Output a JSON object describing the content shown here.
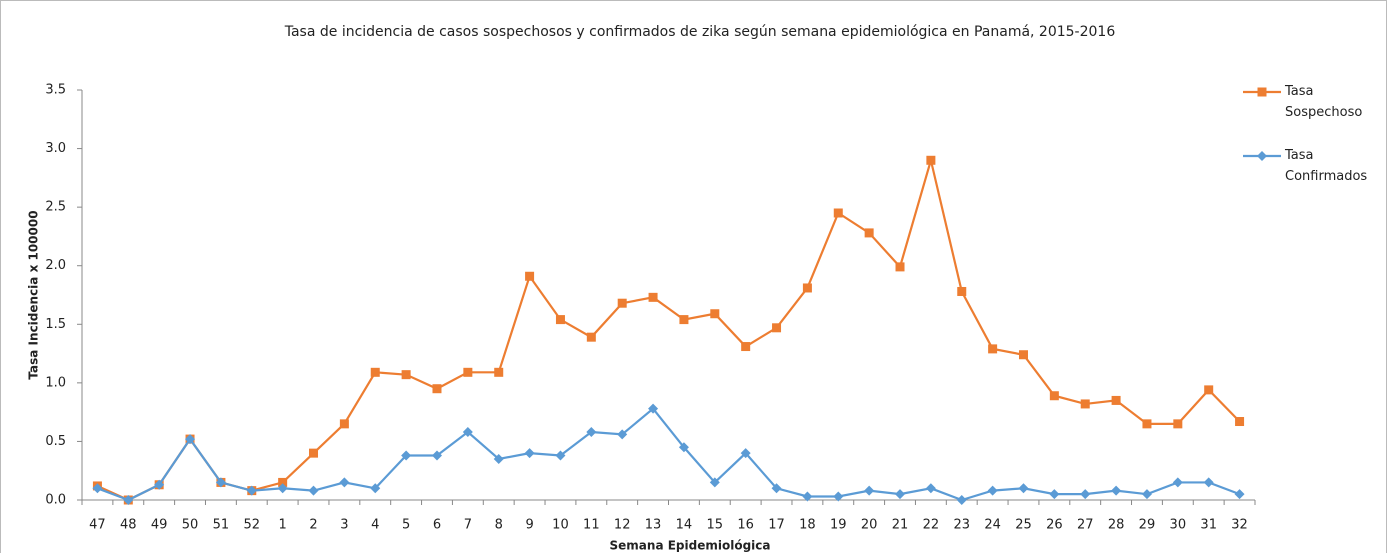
{
  "chart_data": {
    "type": "line",
    "title": "Tasa de incidencia de casos sospechosos y confirmados de zika según semana epidemiológica  en Panamá, 2015-2016",
    "x_label": "Semana Epidemiológica",
    "y_label": "Tasa Incidencia x 100000",
    "categories": [
      "47",
      "48",
      "49",
      "50",
      "51",
      "52",
      "1",
      "2",
      "3",
      "4",
      "5",
      "6",
      "7",
      "8",
      "9",
      "10",
      "11",
      "12",
      "13",
      "14",
      "15",
      "16",
      "17",
      "18",
      "19",
      "20",
      "21",
      "22",
      "23",
      "24",
      "25",
      "26",
      "27",
      "28",
      "29",
      "30",
      "31",
      "32"
    ],
    "series": [
      {
        "name": "Tasa Sospechoso",
        "color": "#ed7d31",
        "marker": "square",
        "values": [
          0.12,
          0.0,
          0.13,
          0.52,
          0.15,
          0.08,
          0.15,
          0.4,
          0.65,
          1.09,
          1.07,
          0.95,
          1.09,
          1.09,
          1.91,
          1.54,
          1.39,
          1.68,
          1.73,
          1.54,
          1.59,
          1.31,
          1.47,
          1.81,
          2.45,
          2.28,
          1.99,
          2.9,
          1.78,
          1.29,
          1.24,
          0.89,
          0.82,
          0.85,
          0.65,
          0.65,
          0.94,
          0.67
        ]
      },
      {
        "name": "Tasa Confirmados",
        "color": "#5b9bd5",
        "marker": "diamond",
        "values": [
          0.1,
          0.0,
          0.13,
          0.52,
          0.15,
          0.08,
          0.1,
          0.08,
          0.15,
          0.1,
          0.38,
          0.38,
          0.58,
          0.35,
          0.4,
          0.38,
          0.58,
          0.56,
          0.78,
          0.45,
          0.15,
          0.4,
          0.1,
          0.03,
          0.03,
          0.08,
          0.05,
          0.1,
          0.0,
          0.08,
          0.1,
          0.05,
          0.05,
          0.08,
          0.05,
          0.15,
          0.15,
          0.05
        ]
      }
    ],
    "ylim": [
      0,
      3.5
    ],
    "yticks": [
      {
        "value": 0,
        "label": "0.0"
      },
      0.5,
      {
        "value": 1,
        "label": "1.0"
      },
      1.5,
      {
        "value": 2,
        "label": "2.0"
      },
      2.5,
      {
        "value": 3,
        "label": "3.0"
      },
      3.5
    ],
    "legend": "right"
  }
}
